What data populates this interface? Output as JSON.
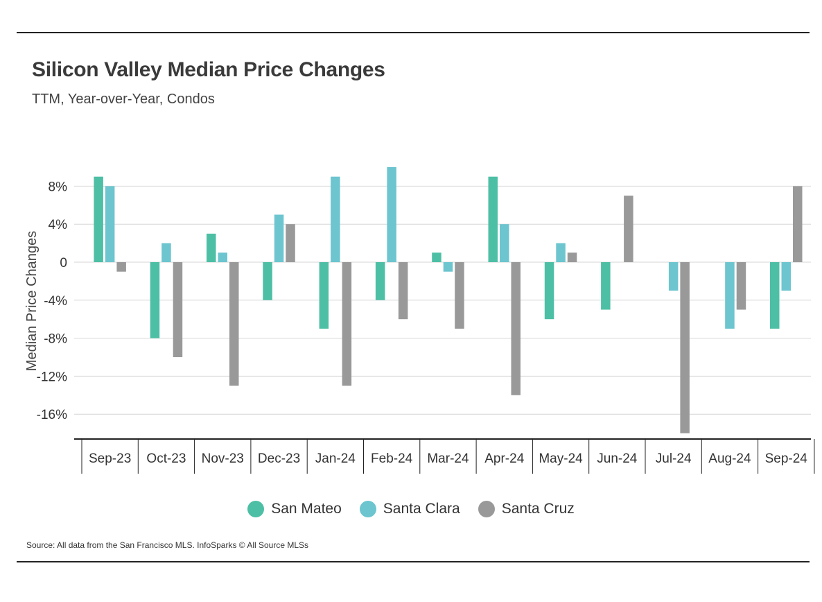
{
  "header": {
    "title": "Silicon Valley Median Price Changes",
    "subtitle": "TTM, Year-over-Year, Condos"
  },
  "footer": {
    "source": "Source:  All data from the San Francisco MLS. InfoSparks © All Source MLSs"
  },
  "chart_data": {
    "type": "bar",
    "ylabel": "Median Price Changes",
    "xlabel": "",
    "ylim": [
      -18,
      9
    ],
    "y_ticks": [
      8,
      4,
      0,
      -4,
      -8,
      -12,
      -16
    ],
    "y_tick_labels": [
      "8%",
      "4%",
      "0",
      "-4%",
      "-8%",
      "-12%",
      "-16%"
    ],
    "grid": true,
    "legend_position": "bottom",
    "categories": [
      "Sep-23",
      "Oct-23",
      "Nov-23",
      "Dec-23",
      "Jan-24",
      "Feb-24",
      "Mar-24",
      "Apr-24",
      "May-24",
      "Jun-24",
      "Jul-24",
      "Aug-24",
      "Sep-24"
    ],
    "series": [
      {
        "name": "San Mateo",
        "color": "#4dbfa5",
        "values": [
          9,
          -8,
          3,
          -4,
          -7,
          -4,
          1,
          9,
          -6,
          -5,
          0,
          0,
          -7
        ]
      },
      {
        "name": "Santa Clara",
        "color": "#6cc5cf",
        "values": [
          8,
          2,
          1,
          5,
          9,
          10,
          -1,
          4,
          2,
          0,
          -3,
          -7,
          -3
        ]
      },
      {
        "name": "Santa Cruz",
        "color": "#999999",
        "values": [
          -1,
          -10,
          -13,
          4,
          -13,
          -6,
          -7,
          -14,
          1,
          7,
          -18,
          -5,
          8
        ]
      }
    ]
  }
}
